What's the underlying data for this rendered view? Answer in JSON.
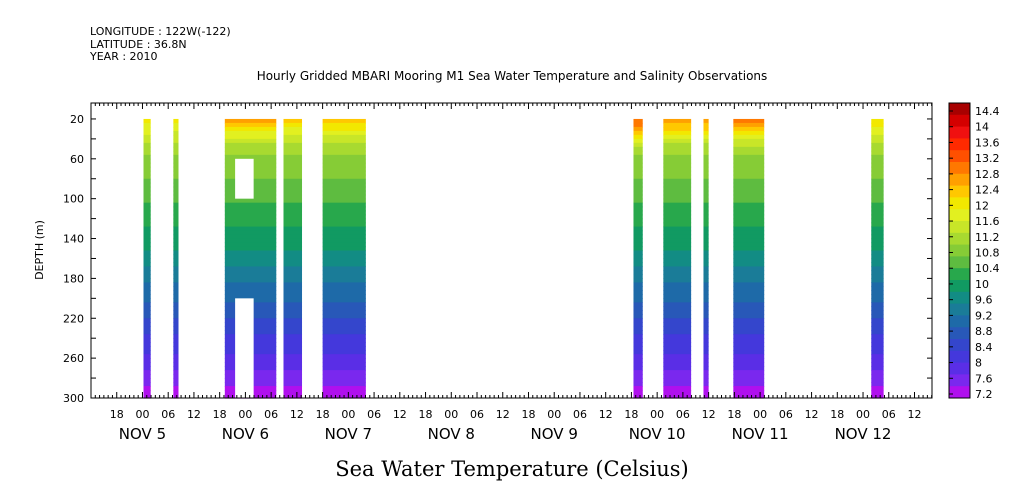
{
  "header": {
    "lines": [
      "LONGITUDE : 122W(-122)",
      "LATITUDE : 36.8N",
      "YEAR : 2010"
    ],
    "title": "Hourly Gridded MBARI Mooring M1 Sea Water Temperature and Salinity Observations"
  },
  "bottom_title": "Sea Water Temperature (Celsius)",
  "chart_data": {
    "type": "heatmap",
    "title": "Hourly Gridded MBARI Mooring M1 Sea Water Temperature and Salinity Observations",
    "xlabel": "",
    "ylabel": "DEPTH (m)",
    "colorbar_label": "Sea Water Temperature (Celsius)",
    "x_axis": {
      "hour_tick_labels": [
        "18",
        "00",
        "06",
        "12",
        "18",
        "00",
        "06",
        "12",
        "18",
        "00",
        "06",
        "12",
        "18",
        "00",
        "06",
        "12",
        "18",
        "00",
        "06",
        "12",
        "18",
        "00",
        "06",
        "12",
        "18",
        "00",
        "06",
        "12",
        "18",
        "00",
        "06",
        "12"
      ],
      "day_labels": [
        {
          "text": "NOV  5",
          "day": 5
        },
        {
          "text": "NOV  6",
          "day": 6
        },
        {
          "text": "NOV  7",
          "day": 7
        },
        {
          "text": "NOV  8",
          "day": 8
        },
        {
          "text": "NOV  9",
          "day": 9
        },
        {
          "text": "NOV 10",
          "day": 10
        },
        {
          "text": "NOV 11",
          "day": 11
        },
        {
          "text": "NOV 12",
          "day": 12
        }
      ],
      "range_days": [
        4.5,
        12.67
      ]
    },
    "y_axis": {
      "tick_labels": [
        "20",
        "60",
        "100",
        "140",
        "180",
        "220",
        "260",
        "300"
      ],
      "range_m": [
        4,
        300
      ],
      "inverted": true
    },
    "colorbar": {
      "levels": [
        "14.4",
        "14",
        "13.6",
        "13.2",
        "12.8",
        "12.4",
        "12",
        "11.6",
        "11.2",
        "10.8",
        "10.4",
        "10",
        "9.6",
        "9.2",
        "8.8",
        "8.4",
        "8",
        "7.6",
        "7.2"
      ],
      "colors": [
        "#a80000",
        "#d40000",
        "#f01010",
        "#ff2a00",
        "#ff5000",
        "#ff7800",
        "#ffa000",
        "#ffc800",
        "#f2e800",
        "#e2f020",
        "#c8e628",
        "#a8da30",
        "#86cc36",
        "#5ebc40",
        "#28a84c",
        "#119a62",
        "#128c84",
        "#1a7c98",
        "#1e6aa8",
        "#2858b8",
        "#3446cc",
        "#4438dc",
        "#5a2ee6",
        "#7a28ee",
        "#b010ee"
      ],
      "range": [
        7.2,
        14.4
      ]
    },
    "segments": [
      {
        "start_day": 5.01,
        "end_day": 5.08,
        "surface_temp": 12.0
      },
      {
        "start_day": 5.3,
        "end_day": 5.35,
        "surface_temp": 11.9
      },
      {
        "start_day": 5.8,
        "end_day": 6.3,
        "surface_temp": 12.5
      },
      {
        "start_day": 6.37,
        "end_day": 6.55,
        "surface_temp": 12.2
      },
      {
        "start_day": 6.75,
        "end_day": 7.17,
        "surface_temp": 12.3
      },
      {
        "start_day": 9.77,
        "end_day": 9.86,
        "surface_temp": 13.1
      },
      {
        "start_day": 10.06,
        "end_day": 10.33,
        "surface_temp": 12.7
      },
      {
        "start_day": 10.45,
        "end_day": 10.5,
        "surface_temp": 12.7
      },
      {
        "start_day": 10.74,
        "end_day": 11.04,
        "surface_temp": 12.9
      },
      {
        "start_day": 12.08,
        "end_day": 12.2,
        "surface_temp": 12.1
      }
    ],
    "missing_blocks": [
      {
        "start_day": 5.9,
        "end_day": 6.08,
        "depth_top": 60,
        "depth_bottom": 100
      },
      {
        "start_day": 5.9,
        "end_day": 6.08,
        "depth_top": 200,
        "depth_bottom": 300
      }
    ]
  }
}
